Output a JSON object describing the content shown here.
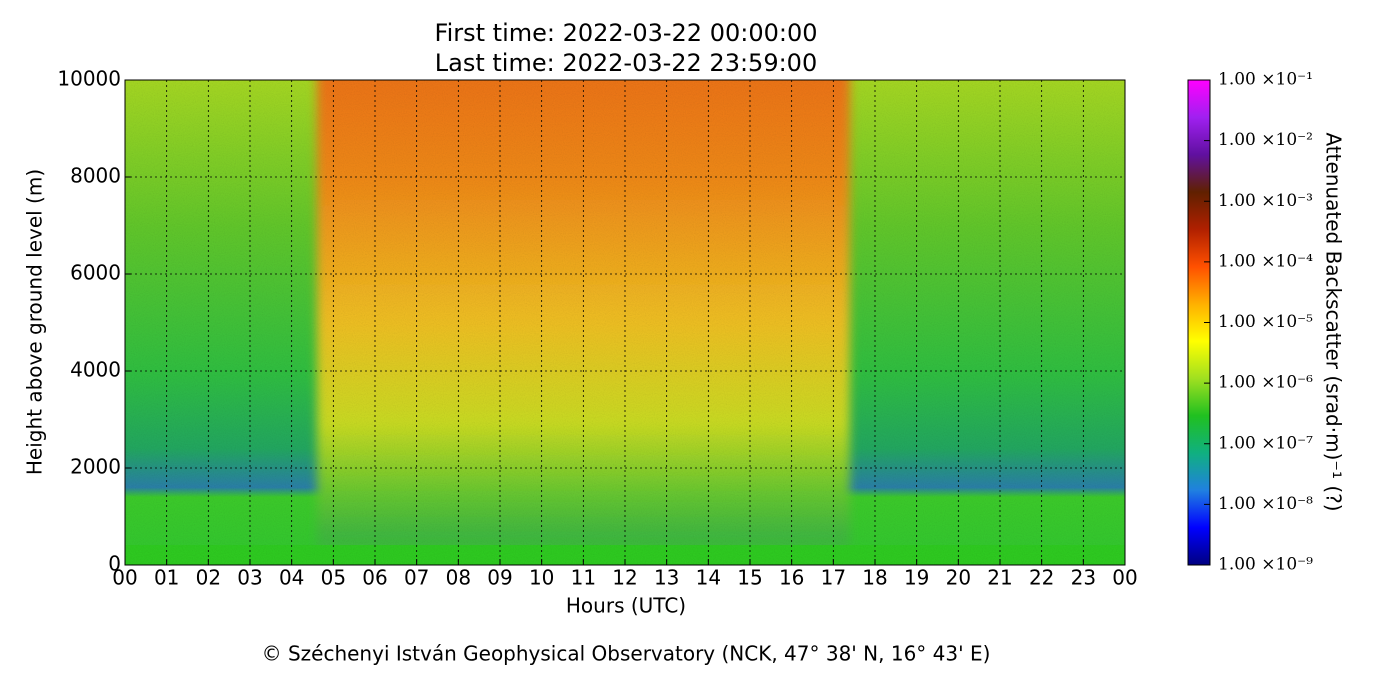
{
  "chart_data": {
    "type": "heatmap",
    "title": "First time: 2022-03-22 00:00:00",
    "subtitle": "Last time: 2022-03-22 23:59:00",
    "x_label": "Hours (UTC)",
    "y_label": "Height above ground level (m)",
    "xlim": [
      0,
      24
    ],
    "xticks": [
      {
        "value": 0,
        "label": "00"
      },
      {
        "value": 1,
        "label": "01"
      },
      {
        "value": 2,
        "label": "02"
      },
      {
        "value": 3,
        "label": "03"
      },
      {
        "value": 4,
        "label": "04"
      },
      {
        "value": 5,
        "label": "05"
      },
      {
        "value": 6,
        "label": "06"
      },
      {
        "value": 7,
        "label": "07"
      },
      {
        "value": 8,
        "label": "08"
      },
      {
        "value": 9,
        "label": "09"
      },
      {
        "value": 10,
        "label": "10"
      },
      {
        "value": 11,
        "label": "11"
      },
      {
        "value": 12,
        "label": "12"
      },
      {
        "value": 13,
        "label": "13"
      },
      {
        "value": 14,
        "label": "14"
      },
      {
        "value": 15,
        "label": "15"
      },
      {
        "value": 16,
        "label": "16"
      },
      {
        "value": 17,
        "label": "17"
      },
      {
        "value": 18,
        "label": "18"
      },
      {
        "value": 19,
        "label": "19"
      },
      {
        "value": 20,
        "label": "20"
      },
      {
        "value": 21,
        "label": "21"
      },
      {
        "value": 22,
        "label": "22"
      },
      {
        "value": 23,
        "label": "23"
      },
      {
        "value": 24,
        "label": "00"
      }
    ],
    "ylim": [
      0,
      10000
    ],
    "yticks": [
      0,
      2000,
      4000,
      6000,
      8000,
      10000
    ],
    "grid": true,
    "colorbar_label": "Attenuated Backscatter (srad·m)⁻¹ (?)",
    "colorbar_log": true,
    "colorbar_lim": [
      1e-09,
      0.1
    ],
    "colorbar_ticks": [
      {
        "value": 1e-09,
        "label": "1.00 ×10⁻⁹"
      },
      {
        "value": 1e-08,
        "label": "1.00 ×10⁻⁸"
      },
      {
        "value": 1e-07,
        "label": "1.00 ×10⁻⁷"
      },
      {
        "value": 1e-06,
        "label": "1.00 ×10⁻⁶"
      },
      {
        "value": 1e-05,
        "label": "1.00 ×10⁻⁵"
      },
      {
        "value": 0.0001,
        "label": "1.00 ×10⁻⁴"
      },
      {
        "value": 0.001,
        "label": "1.00 ×10⁻³"
      },
      {
        "value": 0.01,
        "label": "1.00 ×10⁻²"
      },
      {
        "value": 0.1,
        "label": "1.00 ×10⁻¹"
      }
    ],
    "colormap": [
      "#000080",
      "#0000ff",
      "#2080e0",
      "#10b080",
      "#20c020",
      "#a0e020",
      "#ffff00",
      "#ffb000",
      "#ff5000",
      "#b02000",
      "#602000",
      "#6010a0",
      "#a020f0",
      "#ff00ff"
    ],
    "footer": "© Széchenyi István Geophysical Observatory (NCK, 47° 38' N, 16° 43' E)"
  }
}
